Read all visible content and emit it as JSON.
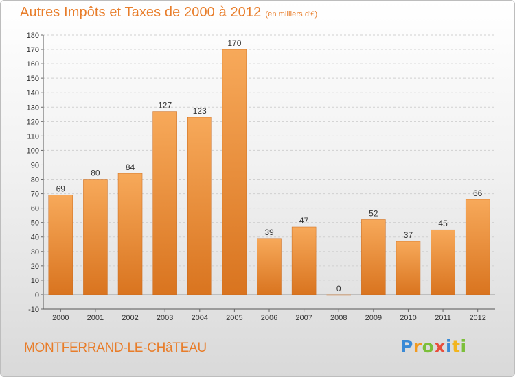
{
  "header": {
    "title": "Autres Impôts et Taxes de 2000 à 2012",
    "subtitle": "(en milliers d'€)"
  },
  "footer": {
    "city": "MONTFERRAND-LE-CHâTEAU",
    "logo": "Proxiti"
  },
  "colors": {
    "bar_light": "#f7a95a",
    "bar_dark": "#d9741f",
    "title": "#e87d2a",
    "grid": "#d0d0d0"
  },
  "chart_data": {
    "type": "bar",
    "title": "Autres Impôts et Taxes de 2000 à 2012",
    "subtitle": "(en milliers d'€)",
    "xlabel": "",
    "ylabel": "",
    "categories": [
      "2000",
      "2001",
      "2002",
      "2003",
      "2004",
      "2005",
      "2006",
      "2007",
      "2008",
      "2009",
      "2010",
      "2011",
      "2012"
    ],
    "values": [
      69,
      80,
      84,
      127,
      123,
      170,
      39,
      47,
      0,
      52,
      37,
      45,
      66
    ],
    "ylim": [
      -10,
      180
    ],
    "yticks": [
      -10,
      0,
      10,
      20,
      30,
      40,
      50,
      60,
      70,
      80,
      90,
      100,
      110,
      120,
      130,
      140,
      150,
      160,
      170,
      180
    ],
    "grid": true,
    "legend": "none"
  }
}
